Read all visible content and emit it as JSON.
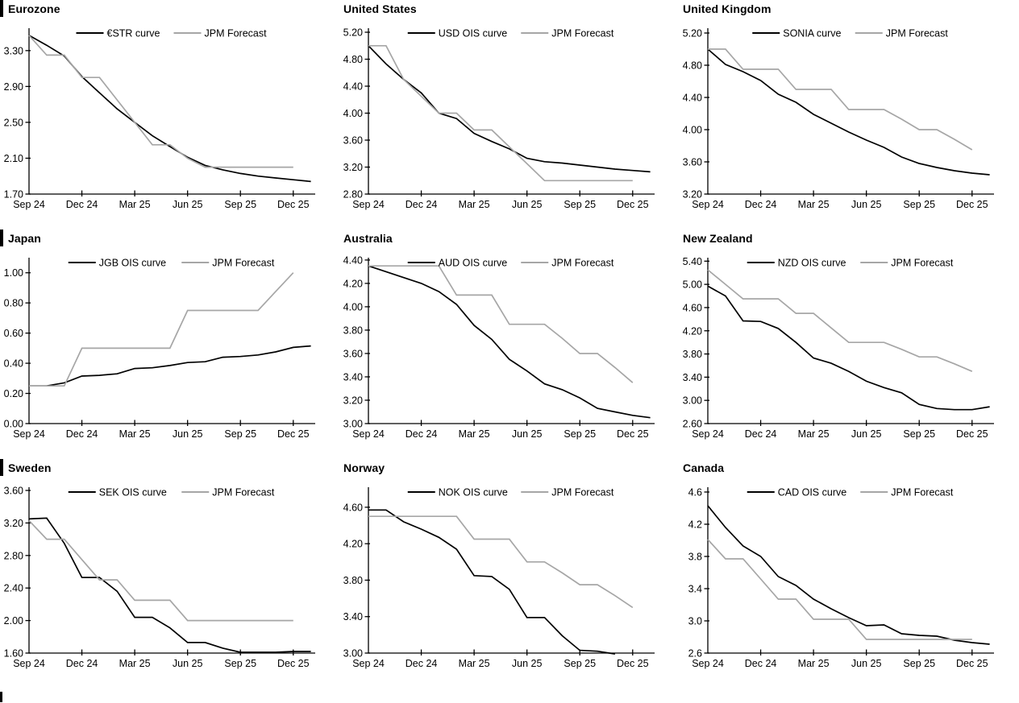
{
  "page": {
    "background": "#ffffff",
    "series_black": "#000000",
    "series_gray": "#a6a6a6"
  },
  "chart_data": [
    {
      "type": "line",
      "title": "Eurozone",
      "x_tick_labels": [
        "Sep 24",
        "Dec 24",
        "Mar 25",
        "Jun 25",
        "Sep 25",
        "Dec 25"
      ],
      "x_months_per_tick": 3,
      "ylim": [
        1.7,
        3.55
      ],
      "y_ticks": [
        1.7,
        2.1,
        2.5,
        2.9,
        3.3
      ],
      "y_decimals": 2,
      "grid": false,
      "legend_position": "top-center",
      "series": [
        {
          "name": "€STR curve",
          "color": "#000000",
          "values": [
            3.47,
            3.36,
            3.24,
            3.01,
            2.83,
            2.65,
            2.5,
            2.35,
            2.23,
            2.11,
            2.02,
            1.97,
            1.93,
            1.9,
            1.88,
            1.86,
            1.84
          ]
        },
        {
          "name": "JPM Forecast",
          "color": "#a6a6a6",
          "values": [
            3.47,
            3.25,
            3.25,
            3.0,
            3.0,
            2.75,
            2.5,
            2.25,
            2.25,
            2.1,
            2.0,
            2.0,
            2.0,
            2.0,
            2.0,
            2.0
          ]
        }
      ]
    },
    {
      "type": "line",
      "title": "United States",
      "x_tick_labels": [
        "Sep 24",
        "Dec 24",
        "Mar 25",
        "Jun 25",
        "Sep 25",
        "Dec 25"
      ],
      "x_months_per_tick": 3,
      "ylim": [
        2.8,
        5.26
      ],
      "y_ticks": [
        2.8,
        3.2,
        3.6,
        4.0,
        4.4,
        4.8,
        5.2
      ],
      "y_decimals": 2,
      "grid": false,
      "legend_position": "top-center",
      "series": [
        {
          "name": "USD OIS curve",
          "color": "#000000",
          "values": [
            5.0,
            4.73,
            4.5,
            4.3,
            4.0,
            3.92,
            3.7,
            3.58,
            3.47,
            3.33,
            3.28,
            3.26,
            3.23,
            3.2,
            3.17,
            3.15,
            3.13
          ]
        },
        {
          "name": "JPM Forecast",
          "color": "#a6a6a6",
          "values": [
            5.0,
            5.0,
            4.5,
            4.25,
            4.0,
            4.0,
            3.75,
            3.75,
            3.5,
            3.25,
            3.0,
            3.0,
            3.0,
            3.0,
            3.0,
            3.0
          ]
        }
      ]
    },
    {
      "type": "line",
      "title": "United Kingdom",
      "x_tick_labels": [
        "Sep 24",
        "Dec 24",
        "Mar 25",
        "Jun 25",
        "Sep 25",
        "Dec 25"
      ],
      "x_months_per_tick": 3,
      "ylim": [
        3.2,
        5.26
      ],
      "y_ticks": [
        3.2,
        3.6,
        4.0,
        4.4,
        4.8,
        5.2
      ],
      "y_decimals": 2,
      "grid": false,
      "legend_position": "top-center",
      "series": [
        {
          "name": "SONIA curve",
          "color": "#000000",
          "values": [
            5.0,
            4.81,
            4.72,
            4.61,
            4.44,
            4.34,
            4.19,
            4.08,
            3.97,
            3.87,
            3.78,
            3.66,
            3.58,
            3.53,
            3.49,
            3.46,
            3.44
          ]
        },
        {
          "name": "JPM Forecast",
          "color": "#a6a6a6",
          "values": [
            5.0,
            5.0,
            4.75,
            4.75,
            4.75,
            4.5,
            4.5,
            4.5,
            4.25,
            4.25,
            4.25,
            4.13,
            4.0,
            4.0,
            3.88,
            3.75
          ]
        }
      ]
    },
    {
      "type": "line",
      "title": "Japan",
      "x_tick_labels": [
        "Sep 24",
        "Dec 24",
        "Mar 25",
        "Jun 25",
        "Sep 25",
        "Dec 25"
      ],
      "x_months_per_tick": 3,
      "ylim": [
        0.0,
        1.1
      ],
      "y_ticks": [
        0.0,
        0.2,
        0.4,
        0.6,
        0.8,
        1.0
      ],
      "y_decimals": 2,
      "grid": false,
      "legend_position": "top-center",
      "series": [
        {
          "name": "JGB OIS curve",
          "color": "#000000",
          "values": [
            0.25,
            0.25,
            0.27,
            0.315,
            0.32,
            0.33,
            0.365,
            0.37,
            0.385,
            0.405,
            0.41,
            0.44,
            0.445,
            0.455,
            0.475,
            0.505,
            0.515
          ]
        },
        {
          "name": "JPM Forecast",
          "color": "#a6a6a6",
          "values": [
            0.25,
            0.25,
            0.25,
            0.5,
            0.5,
            0.5,
            0.5,
            0.5,
            0.5,
            0.75,
            0.75,
            0.75,
            0.75,
            0.75,
            0.875,
            1.0
          ]
        }
      ]
    },
    {
      "type": "line",
      "title": "Australia",
      "x_tick_labels": [
        "Sep 24",
        "Dec 24",
        "Mar 25",
        "Jun 25",
        "Sep 25",
        "Dec 25"
      ],
      "x_months_per_tick": 3,
      "ylim": [
        3.0,
        4.42
      ],
      "y_ticks": [
        3.0,
        3.2,
        3.4,
        3.6,
        3.8,
        4.0,
        4.2,
        4.4
      ],
      "y_decimals": 2,
      "grid": false,
      "legend_position": "top-center",
      "series": [
        {
          "name": "AUD OIS curve",
          "color": "#000000",
          "values": [
            4.35,
            4.3,
            4.25,
            4.2,
            4.13,
            4.02,
            3.84,
            3.72,
            3.55,
            3.45,
            3.34,
            3.29,
            3.22,
            3.13,
            3.1,
            3.07,
            3.05
          ]
        },
        {
          "name": "JPM Forecast",
          "color": "#a6a6a6",
          "values": [
            4.35,
            4.35,
            4.35,
            4.35,
            4.35,
            4.1,
            4.1,
            4.1,
            3.85,
            3.85,
            3.85,
            3.73,
            3.6,
            3.6,
            3.48,
            3.35
          ]
        }
      ]
    },
    {
      "type": "line",
      "title": "New Zealand",
      "x_tick_labels": [
        "Sep 24",
        "Dec 24",
        "Mar 25",
        "Jun 25",
        "Sep 25",
        "Dec 25"
      ],
      "x_months_per_tick": 3,
      "ylim": [
        2.6,
        5.46
      ],
      "y_ticks": [
        2.6,
        3.0,
        3.4,
        3.8,
        4.2,
        4.6,
        5.0,
        5.4
      ],
      "y_decimals": 2,
      "grid": false,
      "legend_position": "top-center",
      "series": [
        {
          "name": "NZD OIS curve",
          "color": "#000000",
          "values": [
            4.97,
            4.8,
            4.37,
            4.36,
            4.24,
            4.0,
            3.73,
            3.64,
            3.5,
            3.33,
            3.22,
            3.13,
            2.93,
            2.86,
            2.84,
            2.84,
            2.89
          ]
        },
        {
          "name": "JPM Forecast",
          "color": "#a6a6a6",
          "values": [
            5.25,
            5.0,
            4.75,
            4.75,
            4.75,
            4.5,
            4.5,
            4.25,
            4.0,
            4.0,
            4.0,
            3.88,
            3.75,
            3.75,
            3.63,
            3.5
          ]
        }
      ]
    },
    {
      "type": "line",
      "title": "Sweden",
      "x_tick_labels": [
        "Sep 24",
        "Dec 24",
        "Mar 25",
        "Jun 25",
        "Sep 25",
        "Dec 25"
      ],
      "x_months_per_tick": 3,
      "ylim": [
        1.6,
        3.64
      ],
      "y_ticks": [
        1.6,
        2.0,
        2.4,
        2.8,
        3.2,
        3.6
      ],
      "y_decimals": 2,
      "grid": false,
      "legend_position": "top-center",
      "series": [
        {
          "name": "SEK OIS curve",
          "color": "#000000",
          "values": [
            3.25,
            3.26,
            2.95,
            2.53,
            2.53,
            2.36,
            2.04,
            2.04,
            1.91,
            1.73,
            1.73,
            1.66,
            1.61,
            1.61,
            1.61,
            1.62,
            1.62
          ]
        },
        {
          "name": "JPM Forecast",
          "color": "#a6a6a6",
          "values": [
            3.23,
            3.0,
            3.0,
            2.75,
            2.5,
            2.5,
            2.25,
            2.25,
            2.25,
            2.0,
            2.0,
            2.0,
            2.0,
            2.0,
            2.0,
            2.0
          ]
        }
      ]
    },
    {
      "type": "line",
      "title": "Norway",
      "x_tick_labels": [
        "Sep 24",
        "Dec 24",
        "Mar 25",
        "Jun 25",
        "Sep 25",
        "Dec 25"
      ],
      "x_months_per_tick": 3,
      "ylim": [
        3.0,
        4.82
      ],
      "y_ticks": [
        3.0,
        3.4,
        3.8,
        4.2,
        4.6
      ],
      "y_decimals": 2,
      "grid": false,
      "legend_position": "top-center",
      "series": [
        {
          "name": "NOK OIS curve",
          "color": "#000000",
          "values": [
            4.57,
            4.57,
            4.44,
            4.36,
            4.27,
            4.14,
            3.85,
            3.84,
            3.7,
            3.39,
            3.39,
            3.19,
            3.03,
            3.02,
            2.99
          ]
        },
        {
          "name": "JPM Forecast",
          "color": "#a6a6a6",
          "values": [
            4.5,
            4.5,
            4.5,
            4.5,
            4.5,
            4.5,
            4.25,
            4.25,
            4.25,
            4.0,
            4.0,
            3.88,
            3.75,
            3.75,
            3.63,
            3.5
          ]
        }
      ]
    },
    {
      "type": "line",
      "title": "Canada",
      "x_tick_labels": [
        "Sep 24",
        "Dec 24",
        "Mar 25",
        "Jun 25",
        "Sep 25",
        "Dec 25"
      ],
      "x_months_per_tick": 3,
      "ylim": [
        2.6,
        4.66
      ],
      "y_ticks": [
        2.6,
        3.0,
        3.4,
        3.8,
        4.2,
        4.6
      ],
      "y_decimals": 1,
      "grid": false,
      "legend_position": "top-center",
      "series": [
        {
          "name": "CAD OIS curve",
          "color": "#000000",
          "values": [
            4.43,
            4.16,
            3.93,
            3.8,
            3.55,
            3.44,
            3.27,
            3.15,
            3.04,
            2.94,
            2.95,
            2.84,
            2.82,
            2.81,
            2.76,
            2.73,
            2.71
          ]
        },
        {
          "name": "JPM Forecast",
          "color": "#a6a6a6",
          "values": [
            4.01,
            3.77,
            3.77,
            3.52,
            3.27,
            3.27,
            3.02,
            3.02,
            3.02,
            2.77,
            2.77,
            2.77,
            2.77,
            2.77,
            2.77,
            2.77
          ]
        }
      ]
    }
  ]
}
